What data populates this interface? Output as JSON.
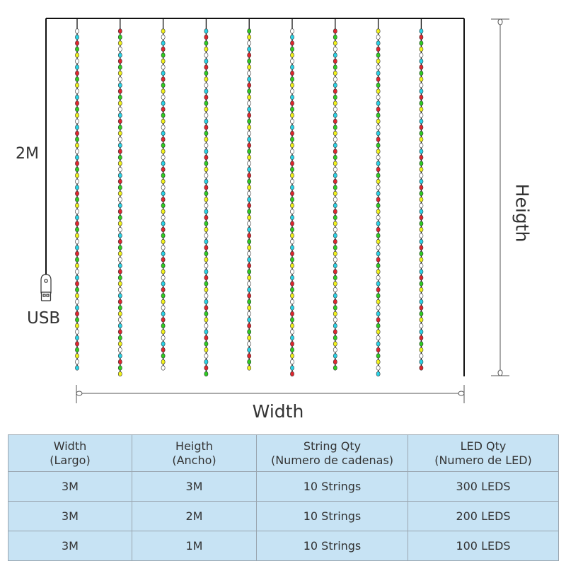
{
  "diagram": {
    "side_label": "2M",
    "usb_label": "USB",
    "width_label": "Width",
    "height_label": "Heigth",
    "led_colors": {
      "white": "#ffffff",
      "cyan": "#2ad3e6",
      "red": "#e0262e",
      "green": "#2ecc22",
      "yellow": "#f2f21c"
    },
    "led_pattern": [
      "white",
      "cyan",
      "red",
      "green",
      "yellow"
    ],
    "string_count": 9,
    "icons": [
      "usb-plug-icon"
    ]
  },
  "table": {
    "headers": [
      {
        "line1": "Width",
        "line2": "(Largo)"
      },
      {
        "line1": "Heigth",
        "line2": "(Ancho)"
      },
      {
        "line1": "String Qty",
        "line2": "(Numero de cadenas)"
      },
      {
        "line1": "LED Qty",
        "line2": "(Numero de LED)"
      }
    ],
    "rows": [
      [
        "3M",
        "3M",
        "10 Strings",
        "300 LEDS"
      ],
      [
        "3M",
        "2M",
        "10 Strings",
        "200 LEDS"
      ],
      [
        "3M",
        "1M",
        "10 Strings",
        "100 LEDS"
      ]
    ],
    "background": "#c7e3f4"
  }
}
